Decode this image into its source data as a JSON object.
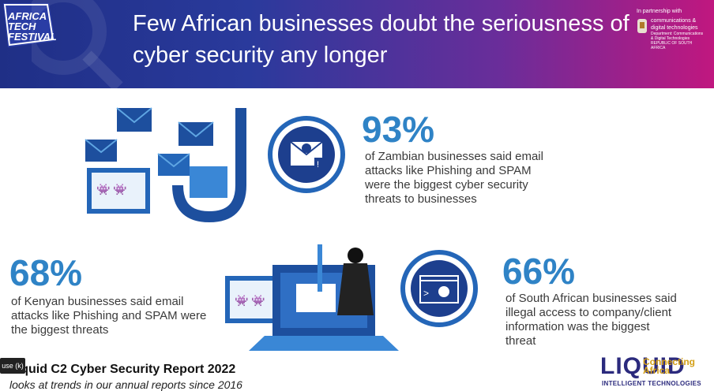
{
  "banner": {
    "logo_lines": [
      "AFRICA",
      "TECH",
      "FESTIVAL"
    ],
    "headline": "Few African businesses doubt the seriousness of cyber security any longer",
    "partner_label": "In partnership with",
    "partner_dept": "communications & digital technologies",
    "partner_small1": "Department: Communications & Digital Technologies",
    "partner_small2": "REPUBLIC OF SOUTH AFRICA"
  },
  "stats": [
    {
      "value": "93%",
      "text": "of Zambian businesses said email attacks like Phishing and SPAM were the biggest cyber security threats to businesses"
    },
    {
      "value": "68%",
      "text": "of Kenyan businesses said email attacks like Phishing and SPAM were the biggest threats"
    },
    {
      "value": "66%",
      "text": "of South African businesses said illegal access to company/client information was the biggest threat"
    }
  ],
  "footer": {
    "report_title": "Liquid C2 Cyber Security Report 2022",
    "report_sub": "looks at trends in our annual reports since 2016",
    "pause_label": "use (k)",
    "liquid_word": "LIQUID",
    "liquid_tag": "Connecting Africa",
    "liquid_sub": "INTELLIGENT TECHNOLOGIES"
  },
  "colors": {
    "accent": "#2f83c6",
    "banner_start": "#1f2f86",
    "banner_end": "#c0177f",
    "dark_blue": "#1d3f8e"
  }
}
